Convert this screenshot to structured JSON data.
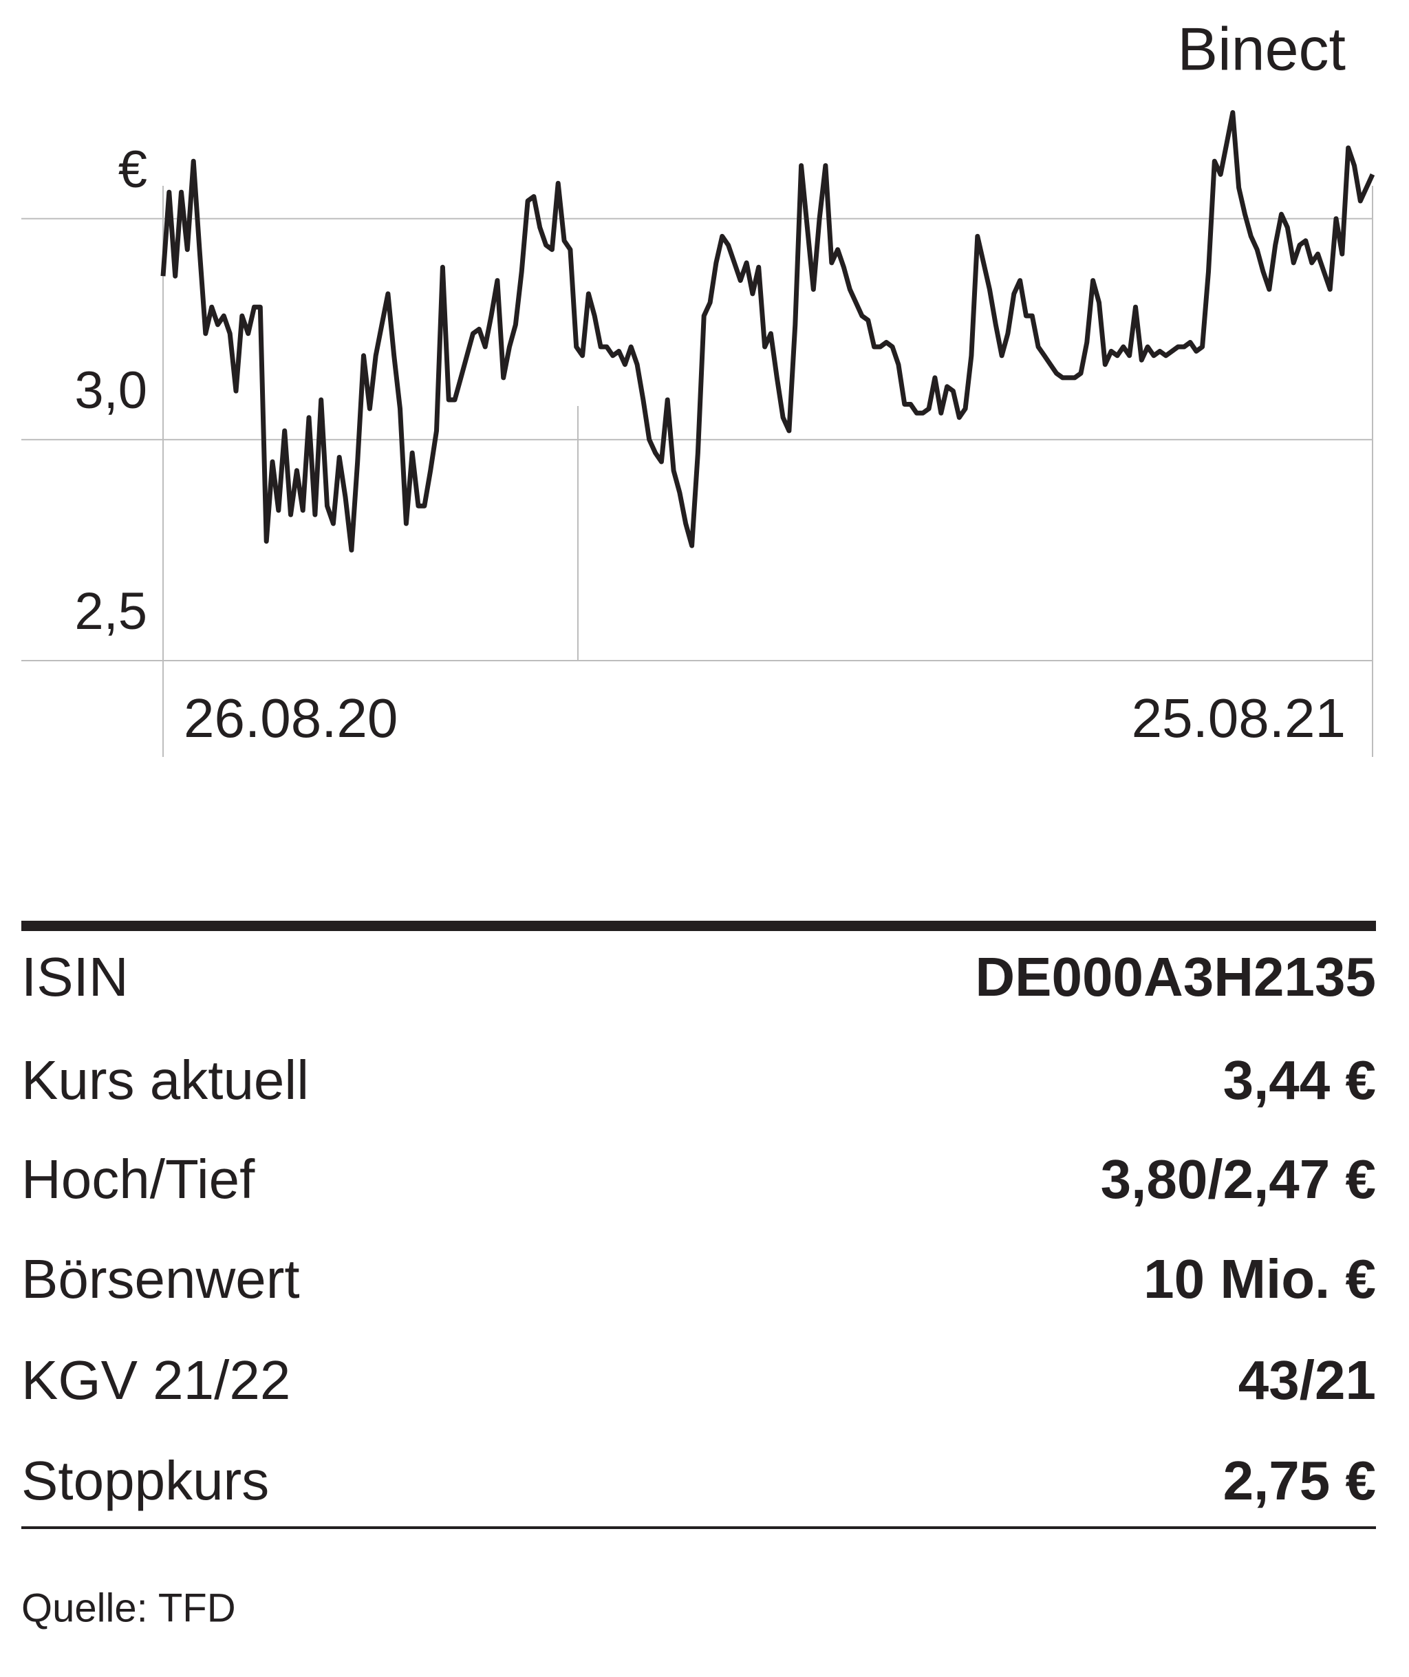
{
  "chart_data": {
    "type": "line",
    "title": "Binect",
    "color": "#231f20",
    "grid": true,
    "ylim": [
      2.5,
      3.8
    ],
    "yticks": [
      {
        "value": 2.5,
        "label": "2,5"
      },
      {
        "value": 3,
        "label": "3,0"
      },
      {
        "value": 3.5,
        "label": "€"
      }
    ],
    "x_labels": [
      "26.08.20",
      "25.08.21"
    ],
    "values": [
      3.37,
      3.56,
      3.37,
      3.56,
      3.43,
      3.63,
      3.43,
      3.24,
      3.3,
      3.26,
      3.28,
      3.24,
      3.11,
      3.28,
      3.24,
      3.3,
      3.3,
      2.77,
      2.95,
      2.84,
      3.02,
      2.83,
      2.93,
      2.84,
      3.05,
      2.83,
      3.09,
      2.85,
      2.81,
      2.96,
      2.87,
      2.75,
      2.95,
      3.19,
      3.07,
      3.19,
      3.26,
      3.33,
      3.19,
      3.07,
      2.81,
      2.97,
      2.85,
      2.85,
      2.93,
      3.02,
      3.39,
      3.09,
      3.09,
      3.14,
      3.19,
      3.24,
      3.25,
      3.21,
      3.28,
      3.36,
      3.14,
      3.21,
      3.26,
      3.38,
      3.54,
      3.55,
      3.48,
      3.44,
      3.43,
      3.58,
      3.45,
      3.43,
      3.21,
      3.19,
      3.33,
      3.28,
      3.21,
      3.21,
      3.19,
      3.2,
      3.17,
      3.21,
      3.17,
      3.09,
      3.0,
      2.97,
      2.95,
      3.09,
      2.93,
      2.88,
      2.81,
      2.76,
      2.97,
      3.28,
      3.31,
      3.4,
      3.46,
      3.44,
      3.4,
      3.36,
      3.4,
      3.33,
      3.39,
      3.21,
      3.24,
      3.14,
      3.05,
      3.02,
      3.26,
      3.62,
      3.48,
      3.34,
      3.5,
      3.62,
      3.4,
      3.43,
      3.39,
      3.34,
      3.31,
      3.28,
      3.27,
      3.21,
      3.21,
      3.22,
      3.21,
      3.17,
      3.08,
      3.08,
      3.06,
      3.06,
      3.07,
      3.14,
      3.06,
      3.12,
      3.11,
      3.05,
      3.07,
      3.19,
      3.46,
      3.4,
      3.34,
      3.26,
      3.19,
      3.24,
      3.33,
      3.36,
      3.28,
      3.28,
      3.21,
      3.19,
      3.17,
      3.15,
      3.14,
      3.14,
      3.14,
      3.15,
      3.22,
      3.36,
      3.31,
      3.17,
      3.2,
      3.19,
      3.21,
      3.19,
      3.3,
      3.18,
      3.21,
      3.19,
      3.2,
      3.19,
      3.2,
      3.21,
      3.21,
      3.22,
      3.2,
      3.21,
      3.38,
      3.63,
      3.6,
      3.67,
      3.74,
      3.57,
      3.51,
      3.46,
      3.43,
      3.38,
      3.34,
      3.44,
      3.51,
      3.48,
      3.4,
      3.44,
      3.45,
      3.4,
      3.42,
      3.38,
      3.34,
      3.5,
      3.42,
      3.66,
      3.62,
      3.54,
      3.57,
      3.6
    ]
  },
  "table": {
    "rows": [
      [
        "ISIN",
        "DE000A3H2135"
      ],
      [
        "Kurs aktuell",
        "3,44 €"
      ],
      [
        "Hoch/Tief",
        "3,80/2,47 €"
      ],
      [
        "Börsenwert",
        "10 Mio. €"
      ],
      [
        "KGV 21/22",
        "43/21"
      ],
      [
        "Stoppkurs",
        "2,75 €"
      ]
    ]
  },
  "source": "Quelle: TFD"
}
